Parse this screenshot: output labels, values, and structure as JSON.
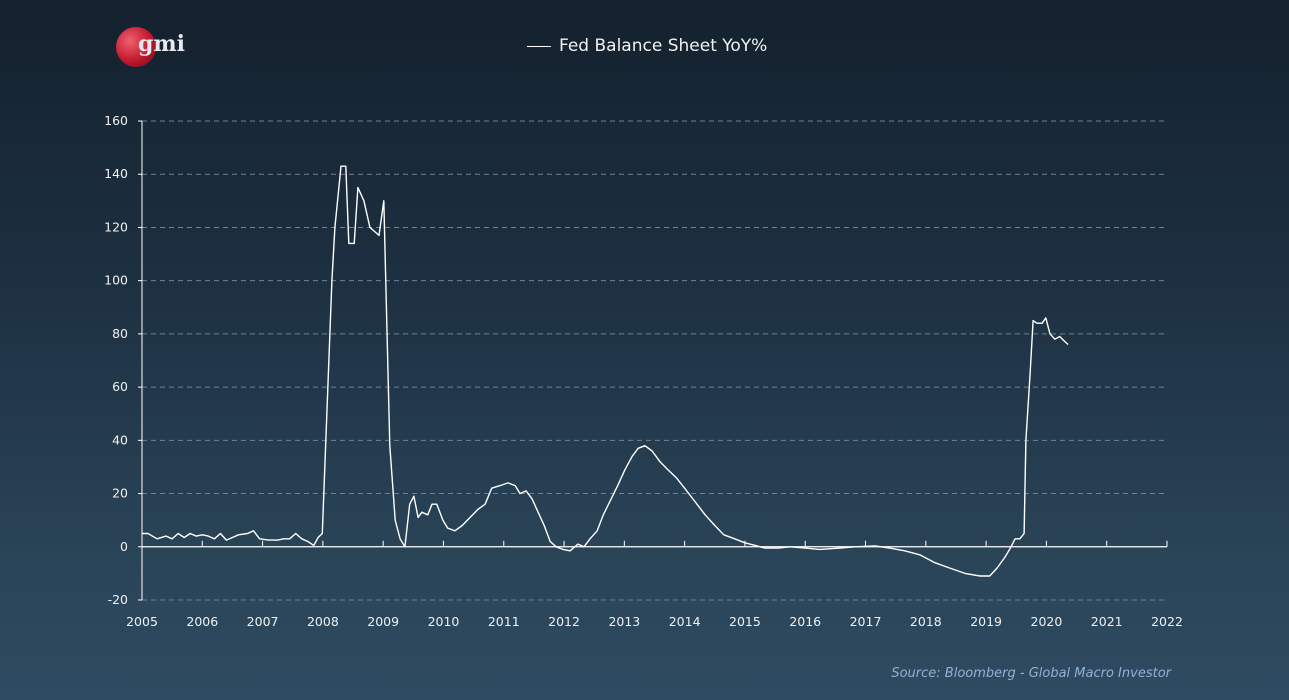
{
  "logo_text": "gmi",
  "source": "Source: Bloomberg - Global Macro Investor",
  "chart_data": {
    "type": "line",
    "title": "",
    "xlabel": "",
    "ylabel": "",
    "legend": {
      "entries": [
        "Fed Balance Sheet YoY%"
      ],
      "placement": "top-center"
    },
    "xlim": [
      2005,
      2022
    ],
    "ylim": [
      -20,
      160
    ],
    "grid": "horizontal dashed",
    "x_ticks": [
      "2005",
      "2006",
      "2007",
      "2008",
      "2009",
      "2010",
      "2011",
      "2012",
      "2013",
      "2014",
      "2015",
      "2016",
      "2017",
      "2018",
      "2019",
      "2020",
      "2021",
      "2022"
    ],
    "y_ticks": [
      "-20",
      "0",
      "20",
      "40",
      "60",
      "80",
      "100",
      "120",
      "140",
      "160"
    ],
    "series": [
      {
        "name": "Fed Balance Sheet YoY%",
        "color": "#ffffff",
        "x": [
          2005.0,
          2005.1,
          2005.25,
          2005.4,
          2005.5,
          2005.6,
          2005.7,
          2005.8,
          2005.9,
          2006.0,
          2006.1,
          2006.2,
          2006.3,
          2006.4,
          2006.5,
          2006.6,
          2006.75,
          2006.85,
          2006.95,
          2007.1,
          2007.25,
          2007.35,
          2007.45,
          2007.55,
          2007.65,
          2007.75,
          2007.85,
          2007.92,
          2007.99,
          2008.15,
          2008.2,
          2008.3,
          2008.38,
          2008.43,
          2008.52,
          2008.58,
          2008.68,
          2008.78,
          2008.93,
          2009.01,
          2009.11,
          2009.2,
          2009.28,
          2009.36,
          2009.44,
          2009.51,
          2009.58,
          2009.64,
          2009.74,
          2009.81,
          2009.89,
          2009.99,
          2010.07,
          2010.19,
          2010.31,
          2010.44,
          2010.57,
          2010.69,
          2010.8,
          2010.94,
          2011.07,
          2011.19,
          2011.27,
          2011.37,
          2011.47,
          2011.57,
          2011.67,
          2011.77,
          2011.87,
          2011.98,
          2012.1,
          2012.23,
          2012.33,
          2012.43,
          2012.55,
          2012.65,
          2012.76,
          2012.89,
          2013.01,
          2013.13,
          2013.23,
          2013.34,
          2013.46,
          2013.59,
          2013.72,
          2013.86,
          2014.0,
          2014.17,
          2014.34,
          2014.5,
          2014.65,
          2014.83,
          2015.0,
          2015.17,
          2015.33,
          2015.55,
          2015.75,
          2016.0,
          2016.24,
          2016.58,
          2016.82,
          2017.16,
          2017.4,
          2017.65,
          2017.9,
          2018.15,
          2018.4,
          2018.65,
          2018.9,
          2019.06,
          2019.18,
          2019.31,
          2019.39,
          2019.48,
          2019.56,
          2019.63,
          2019.66,
          2019.73,
          2019.78,
          2019.84,
          2019.93,
          2019.99,
          2020.06,
          2020.14,
          2020.22,
          2020.31,
          2020.36
        ],
        "y": [
          5,
          5,
          3,
          4,
          3,
          5,
          3.5,
          5,
          4,
          4.5,
          4,
          3,
          5,
          2.5,
          3.5,
          4.5,
          5,
          6,
          3,
          2.5,
          2.5,
          3,
          3,
          5,
          3,
          2,
          0.5,
          3.5,
          5,
          100,
          120,
          143,
          143,
          114,
          114,
          135,
          130,
          120,
          117,
          130,
          38,
          10,
          3,
          0,
          16,
          19,
          11,
          13,
          12,
          16,
          16,
          10,
          7,
          6,
          8,
          11,
          14,
          16,
          22,
          23,
          24,
          23,
          20,
          21,
          18,
          13,
          8,
          2,
          0,
          -1,
          -1.5,
          1,
          0,
          3,
          6,
          12,
          17,
          23,
          29,
          34,
          37,
          38,
          36,
          32,
          29,
          26,
          22,
          17,
          12,
          8,
          4.5,
          3,
          1.5,
          0.5,
          -0.5,
          -0.5,
          0,
          -0.5,
          -1,
          -0.5,
          0,
          0.3,
          -0.5,
          -1.5,
          -3,
          -6,
          -8,
          -10,
          -11,
          -11,
          -8,
          -4,
          -1,
          3,
          3,
          5,
          40,
          65,
          85,
          84,
          84,
          86,
          80,
          78,
          79,
          77,
          76
        ]
      }
    ]
  }
}
